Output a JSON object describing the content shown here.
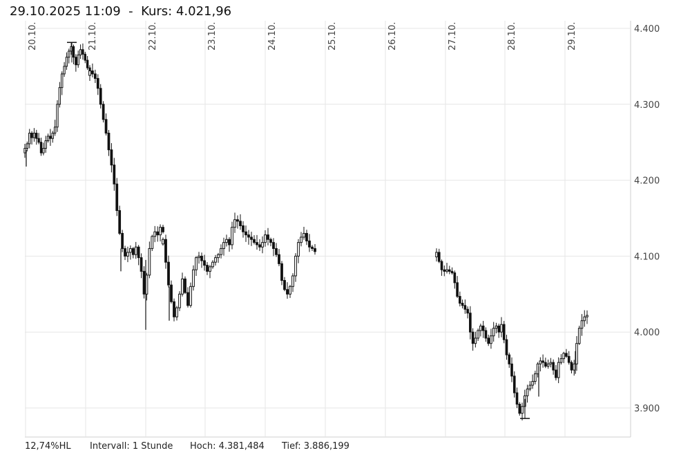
{
  "header": {
    "datetime": "29.10.2025 11:09",
    "separator": "-",
    "price_label": "Kurs:",
    "price_value": "4.021,96"
  },
  "footer": {
    "range": "12,74%HL",
    "interval": "Intervall: 1 Stunde",
    "high": "Hoch: 4.381,484",
    "low": "Tief: 3.886,199"
  },
  "colors": {
    "grid": "#e6e6e6",
    "candle": "#111111"
  },
  "chart_data": {
    "type": "candlestick",
    "interval": "1 Stunde",
    "ylim": [
      3870,
      4400
    ],
    "y_ticks": [
      {
        "value": 3900,
        "label": "3.900"
      },
      {
        "value": 4000,
        "label": "4.000"
      },
      {
        "value": 4100,
        "label": "4.100"
      },
      {
        "value": 4200,
        "label": "4.200"
      },
      {
        "value": 4300,
        "label": "4.300"
      },
      {
        "value": 4400,
        "label": "4.400"
      }
    ],
    "x_ticks": [
      "20.10.",
      "21.10.",
      "22.10.",
      "23.10.",
      "24.10.",
      "25.10.",
      "26.10.",
      "27.10.",
      "28.10.",
      "29.10."
    ],
    "high": 4381.484,
    "low": 3886.199,
    "series_close": [
      [
        4242,
        4248,
        4262,
        4256,
        4262,
        4255,
        4250,
        4236,
        4242,
        4252,
        4258,
        4255,
        4262,
        4270,
        4300,
        4322,
        4340,
        4350,
        4362,
        4370,
        4376,
        4362,
        4352,
        4365,
        4372,
        4366,
        4358,
        4348,
        4339
      ],
      [
        4344,
        4340,
        4334,
        4321,
        4300,
        4280,
        4262,
        4240,
        4220,
        4195,
        4160,
        4130,
        4110,
        4100,
        4105,
        4110,
        4102,
        4112,
        4098,
        4080,
        4050,
        4075,
        4110,
        4126,
        4132,
        4128,
        4138,
        4132
      ],
      [
        4122,
        4092,
        4062,
        4040,
        4020,
        4032,
        4050,
        4070,
        4052,
        4035,
        4060,
        4082,
        4098,
        4100,
        4094,
        4088,
        4080,
        4086,
        4092,
        4098,
        4102,
        4110,
        4118,
        4122,
        4115,
        4138,
        4148,
        4146,
        4140,
        4132,
        4128,
        4125,
        4122,
        4118,
        4115,
        4112,
        4118,
        4128,
        4122,
        4118,
        4110,
        4102,
        4090,
        4068,
        4056,
        4050,
        4060,
        4074,
        4100,
        4118,
        4125,
        4130,
        4120,
        4112,
        4110,
        4106
      ],
      [
        4105,
        4093,
        4082,
        4080,
        4082,
        4080,
        4078,
        4065,
        4047,
        4038,
        4035,
        4030,
        4025,
        4000,
        3985,
        3992,
        4002,
        4008,
        4002,
        3992,
        3985,
        3995,
        4005,
        4008,
        4000,
        4010,
        3990,
        3970,
        3958,
        3942,
        3920,
        3905,
        3893,
        3902,
        3916,
        3925,
        3930,
        3935,
        3945,
        3958,
        3962,
        3960,
        3955,
        3958,
        3960,
        3950,
        3940,
        3960,
        3965,
        3972,
        3968,
        3960,
        3950,
        3958,
        3985,
        4005,
        4015,
        4020,
        4022
      ]
    ],
    "segments_x": [
      [
        36,
        130
      ],
      [
        130,
        236
      ],
      [
        236,
        456
      ],
      [
        632,
        850
      ]
    ]
  }
}
